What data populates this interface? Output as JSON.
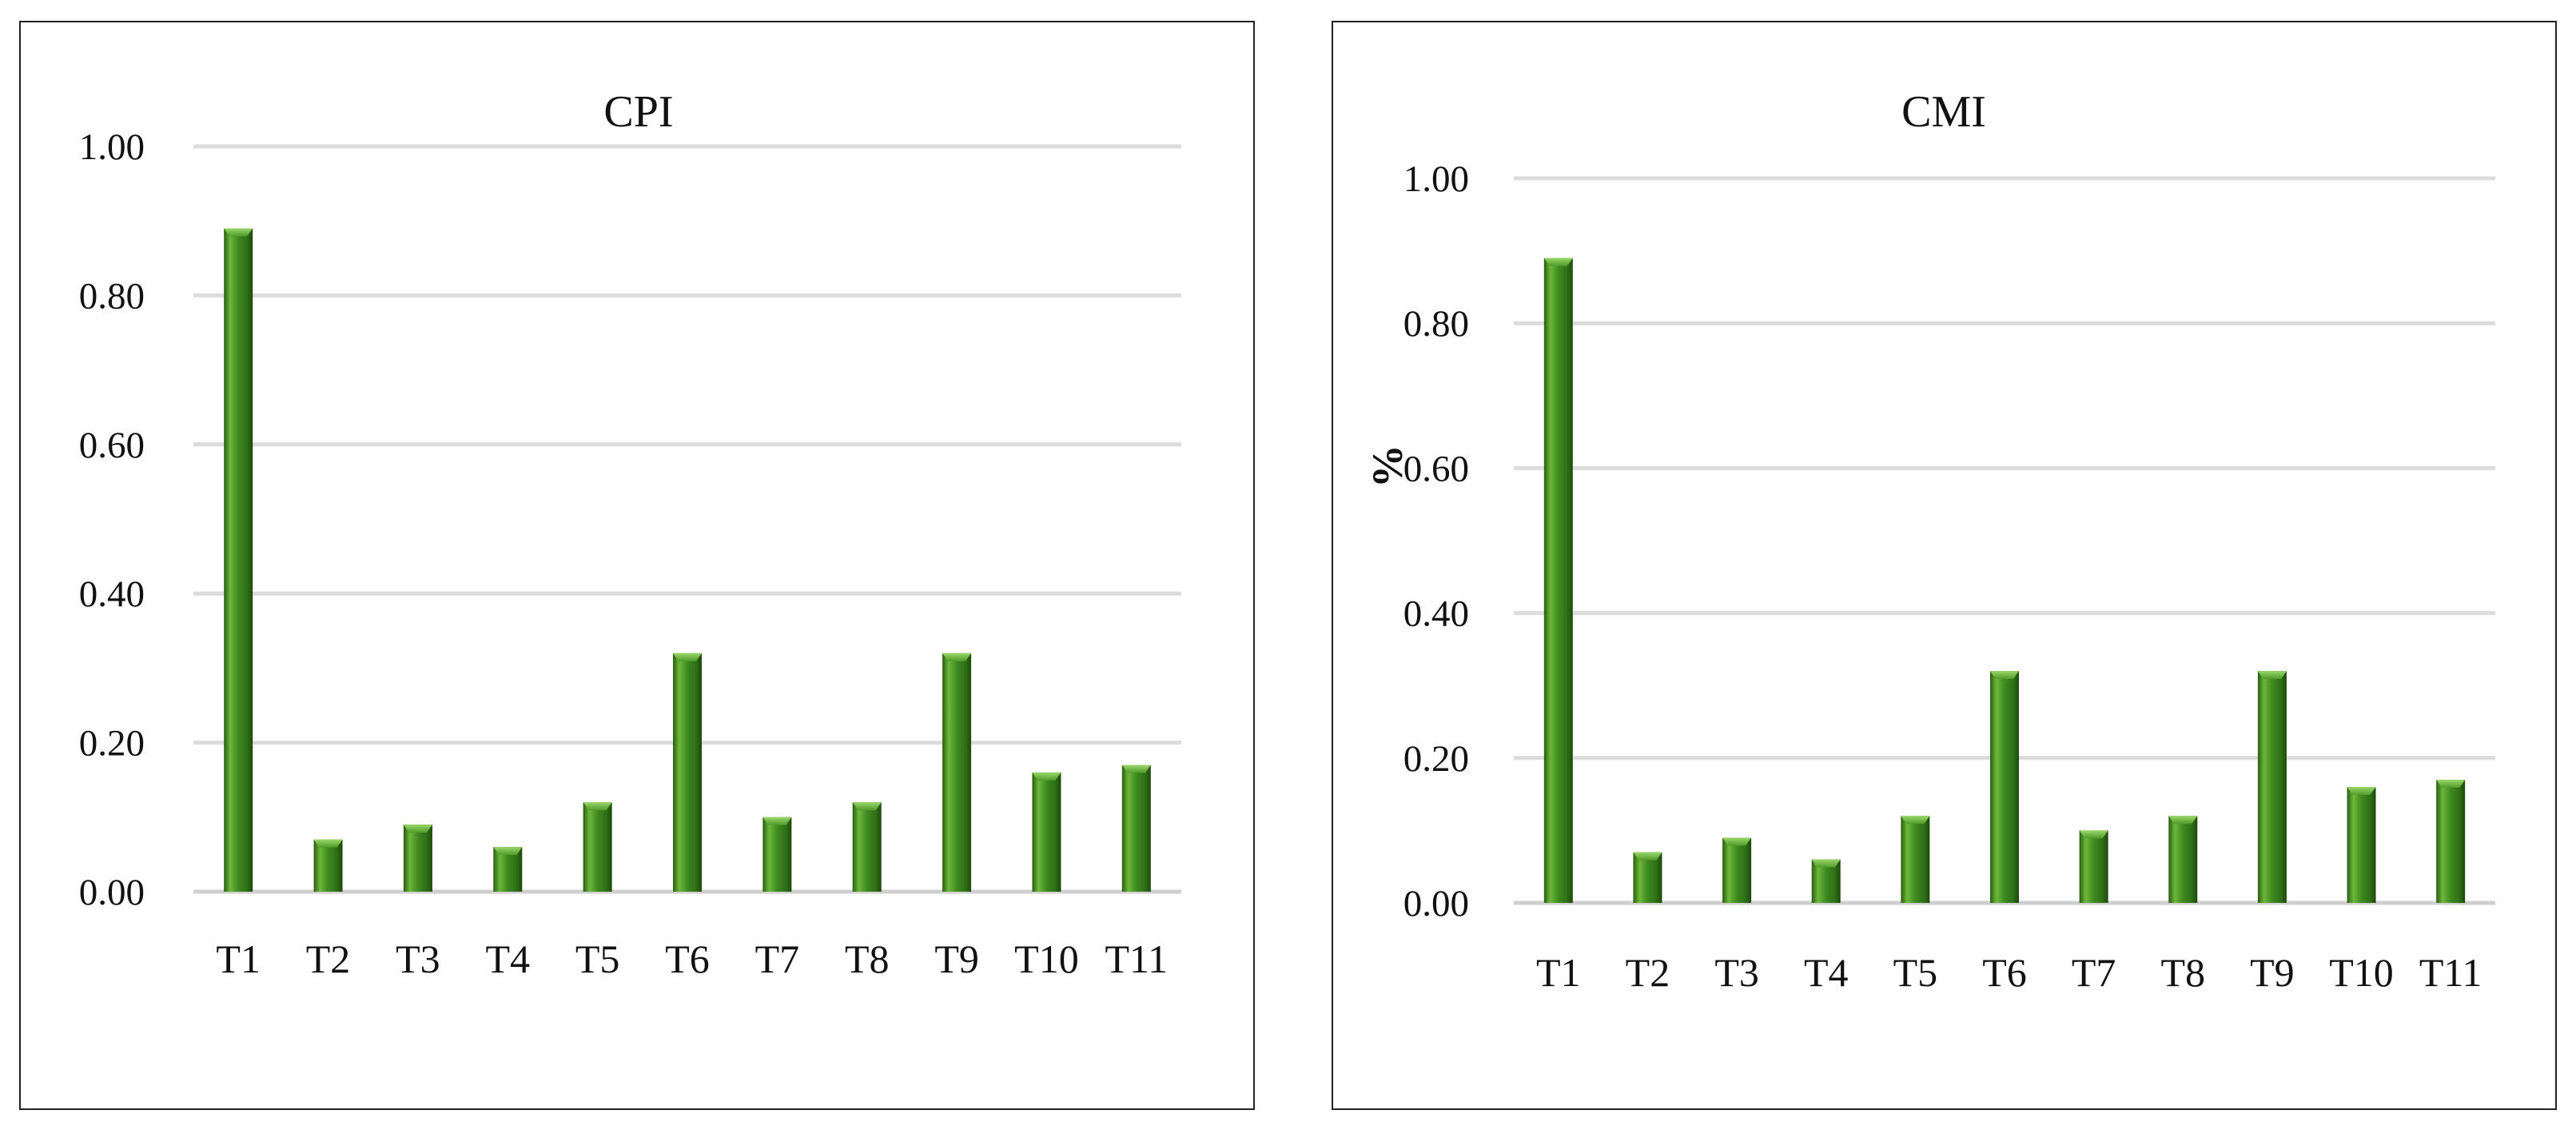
{
  "chart_data": [
    {
      "type": "bar",
      "title": "CPI",
      "xlabel": "",
      "ylabel": "",
      "categories": [
        "T1",
        "T2",
        "T3",
        "T4",
        "T5",
        "T6",
        "T7",
        "T8",
        "T9",
        "T10",
        "T11"
      ],
      "values": [
        0.89,
        0.07,
        0.09,
        0.06,
        0.12,
        0.32,
        0.1,
        0.12,
        0.32,
        0.16,
        0.17
      ],
      "ylim": [
        0,
        1
      ],
      "yticks": [
        "0.00",
        "0.20",
        "0.40",
        "0.60",
        "0.80",
        "1.00"
      ],
      "grid": true,
      "bar_color": "#4f9a2a"
    },
    {
      "type": "bar",
      "title": "CMI",
      "xlabel": "",
      "ylabel": "%",
      "categories": [
        "T1",
        "T2",
        "T3",
        "T4",
        "T5",
        "T6",
        "T7",
        "T8",
        "T9",
        "T10",
        "T11"
      ],
      "values": [
        0.89,
        0.07,
        0.09,
        0.06,
        0.12,
        0.32,
        0.1,
        0.12,
        0.32,
        0.16,
        0.17
      ],
      "ylim": [
        0,
        1
      ],
      "yticks": [
        "0.00",
        "0.20",
        "0.40",
        "0.60",
        "0.80",
        "1.00"
      ],
      "grid": true,
      "bar_color": "#4f9a2a"
    }
  ]
}
